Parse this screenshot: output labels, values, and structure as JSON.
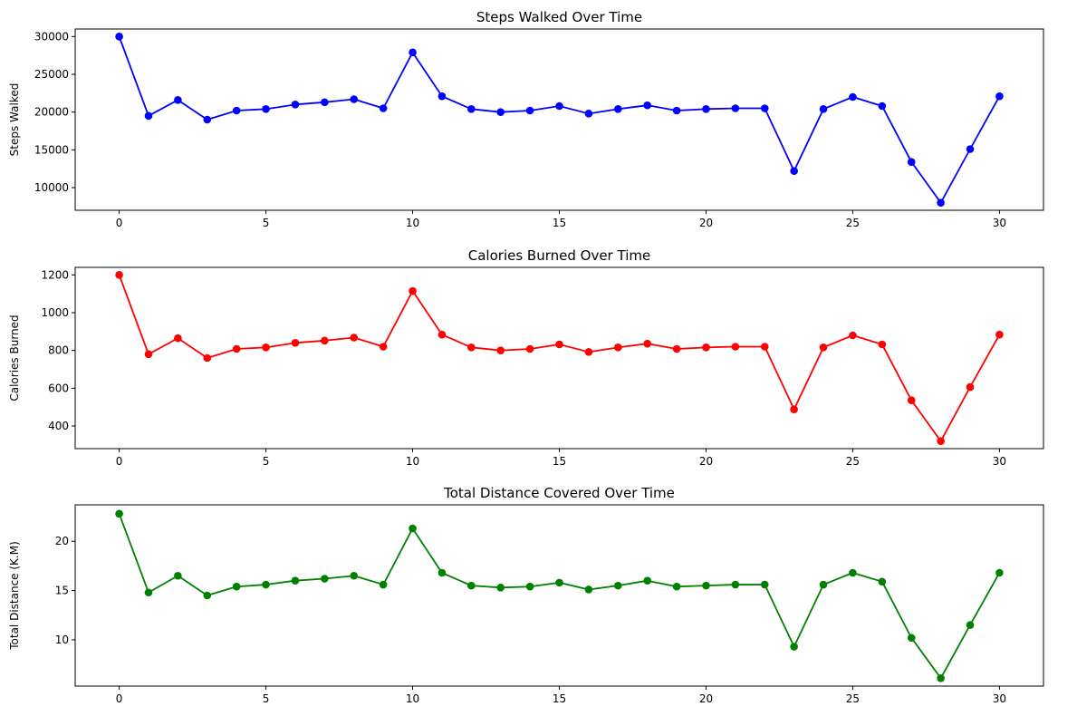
{
  "chart_data": [
    {
      "type": "line",
      "title": "Steps Walked Over Time",
      "xlabel": "",
      "ylabel": "Steps Walked",
      "xlim": [
        -1.5,
        31.5
      ],
      "ylim": [
        7000,
        31000
      ],
      "xticks": [
        0,
        5,
        10,
        15,
        20,
        25,
        30
      ],
      "yticks": [
        10000,
        15000,
        20000,
        25000,
        30000
      ],
      "grid": false,
      "color": "#0000ff",
      "series": [
        {
          "x": [
            0,
            1,
            2,
            3,
            4,
            5,
            6,
            7,
            8,
            9,
            10,
            11,
            12,
            13,
            14,
            15,
            16,
            17,
            18,
            19,
            20,
            21,
            22,
            23,
            24,
            25,
            26,
            27,
            28,
            29,
            30
          ],
          "values": [
            30000,
            19500,
            21600,
            19000,
            20200,
            20400,
            21000,
            21300,
            21700,
            20500,
            27900,
            22100,
            20400,
            20000,
            20200,
            20800,
            19800,
            20400,
            20900,
            20200,
            20400,
            20500,
            20500,
            12200,
            20400,
            22000,
            20800,
            13400,
            8000,
            15100,
            22100
          ]
        }
      ]
    },
    {
      "type": "line",
      "title": "Calories Burned Over Time",
      "xlabel": "",
      "ylabel": "Calories Burned",
      "xlim": [
        -1.5,
        31.5
      ],
      "ylim": [
        280,
        1240
      ],
      "xticks": [
        0,
        5,
        10,
        15,
        20,
        25,
        30
      ],
      "yticks": [
        400,
        600,
        800,
        1000,
        1200
      ],
      "grid": false,
      "color": "#ff0000",
      "series": [
        {
          "x": [
            0,
            1,
            2,
            3,
            4,
            5,
            6,
            7,
            8,
            9,
            10,
            11,
            12,
            13,
            14,
            15,
            16,
            17,
            18,
            19,
            20,
            21,
            22,
            23,
            24,
            25,
            26,
            27,
            28,
            29,
            30
          ],
          "values": [
            1200,
            780,
            865,
            760,
            808,
            816,
            840,
            852,
            868,
            820,
            1115,
            884,
            816,
            800,
            808,
            832,
            792,
            816,
            836,
            808,
            816,
            820,
            820,
            488,
            816,
            880,
            832,
            536,
            320,
            606,
            884
          ]
        }
      ]
    },
    {
      "type": "line",
      "title": "Total Distance Covered Over Time",
      "xlabel": "",
      "ylabel": "Total Distance (K.M)",
      "xlim": [
        -1.5,
        31.5
      ],
      "ylim": [
        5.3,
        23.7
      ],
      "xticks": [
        0,
        5,
        10,
        15,
        20,
        25,
        30
      ],
      "yticks": [
        10,
        15,
        20
      ],
      "grid": false,
      "color": "#008000",
      "series": [
        {
          "x": [
            0,
            1,
            2,
            3,
            4,
            5,
            6,
            7,
            8,
            9,
            10,
            11,
            12,
            13,
            14,
            15,
            16,
            17,
            18,
            19,
            20,
            21,
            22,
            23,
            24,
            25,
            26,
            27,
            28,
            29,
            30
          ],
          "values": [
            22.8,
            14.8,
            16.5,
            14.5,
            15.4,
            15.6,
            16.0,
            16.2,
            16.5,
            15.6,
            21.3,
            16.8,
            15.5,
            15.3,
            15.4,
            15.8,
            15.1,
            15.5,
            16.0,
            15.4,
            15.5,
            15.6,
            15.6,
            9.3,
            15.6,
            16.8,
            15.9,
            10.2,
            6.1,
            11.5,
            16.8
          ]
        }
      ]
    }
  ]
}
